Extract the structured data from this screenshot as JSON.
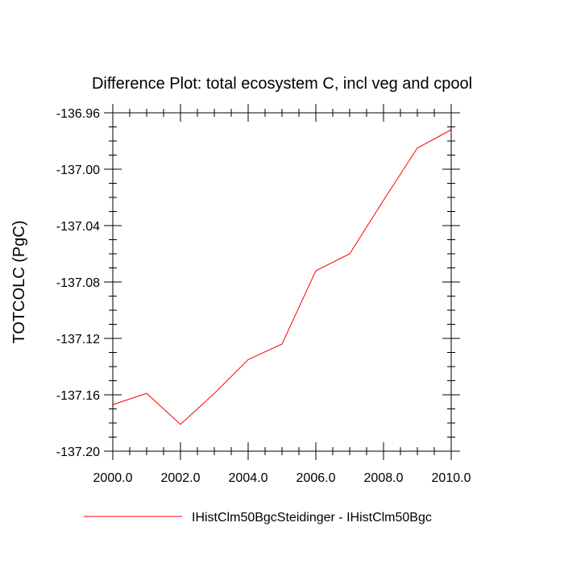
{
  "chart_data": {
    "type": "line",
    "title": "Difference Plot: total ecosystem C, incl veg and cpool",
    "xlabel": "",
    "ylabel": "TOTCOLC  (PgC)",
    "xlim": [
      2000,
      2010
    ],
    "ylim": [
      -137.2,
      -136.96
    ],
    "xticks": [
      2000,
      2002,
      2004,
      2006,
      2008,
      2010
    ],
    "xtick_labels": [
      "2000.0",
      "2002.0",
      "2004.0",
      "2006.0",
      "2008.0",
      "2010.0"
    ],
    "yticks": [
      -136.96,
      -137.0,
      -137.04,
      -137.08,
      -137.12,
      -137.16,
      -137.2
    ],
    "ytick_labels": [
      "-136.96",
      "-137.00",
      "-137.04",
      "-137.08",
      "-137.12",
      "-137.16",
      "-137.20"
    ],
    "grid": false,
    "legend_position": "bottom",
    "series": [
      {
        "name": "IHistClm50BgcSteidinger - IHistClm50Bgc",
        "color": "#ff0000",
        "x": [
          2000,
          2001,
          2002,
          2003,
          2004,
          2005,
          2006,
          2007,
          2008,
          2009,
          2010
        ],
        "y": [
          -137.167,
          -137.159,
          -137.181,
          -137.159,
          -137.135,
          -137.124,
          -137.072,
          -137.06,
          -137.022,
          -136.985,
          -136.972
        ]
      }
    ]
  }
}
